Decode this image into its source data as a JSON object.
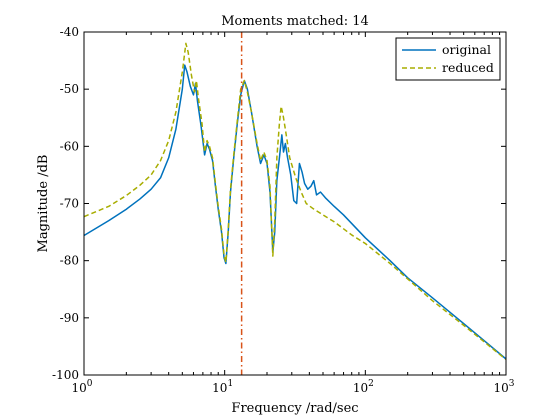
{
  "chart_data": {
    "type": "line",
    "title": "Moments matched: 14",
    "xlabel": "Frequency /rad/sec",
    "ylabel": "Magnitude /dB",
    "xscale": "log",
    "xlim": [
      1,
      1000
    ],
    "ylim": [
      -100,
      -40
    ],
    "xticks": [
      1,
      10,
      100,
      1000
    ],
    "xtick_labels": [
      {
        "base": "10",
        "exp": "0"
      },
      {
        "base": "10",
        "exp": "1"
      },
      {
        "base": "10",
        "exp": "2"
      },
      {
        "base": "10",
        "exp": "3"
      }
    ],
    "yticks": [
      -100,
      -90,
      -80,
      -70,
      -60,
      -50,
      -40
    ],
    "ytick_labels": [
      "-100",
      "-90",
      "-80",
      "-70",
      "-60",
      "-50",
      "-40"
    ],
    "grid": false,
    "legend_position": "top-right",
    "vertical_marker": {
      "x": 13.2,
      "color": "#d95319",
      "style": "dash-dot"
    },
    "series": [
      {
        "name": "original",
        "color": "#0072bd",
        "style": "solid",
        "points": [
          [
            1.0,
            -75.6
          ],
          [
            1.5,
            -73.0
          ],
          [
            2.0,
            -71.0
          ],
          [
            2.5,
            -69.2
          ],
          [
            3.0,
            -67.5
          ],
          [
            3.5,
            -65.5
          ],
          [
            4.0,
            -62.0
          ],
          [
            4.5,
            -57.0
          ],
          [
            5.0,
            -50.0
          ],
          [
            5.2,
            -45.8
          ],
          [
            5.4,
            -47.0
          ],
          [
            5.7,
            -49.5
          ],
          [
            6.0,
            -51.0
          ],
          [
            6.2,
            -49.0
          ],
          [
            6.4,
            -52.0
          ],
          [
            6.8,
            -56.5
          ],
          [
            7.2,
            -61.5
          ],
          [
            7.5,
            -59.5
          ],
          [
            7.8,
            -60.5
          ],
          [
            8.2,
            -62.5
          ],
          [
            8.6,
            -67.0
          ],
          [
            9.0,
            -71.0
          ],
          [
            9.5,
            -75.0
          ],
          [
            9.9,
            -79.5
          ],
          [
            10.2,
            -80.5
          ],
          [
            10.6,
            -75.0
          ],
          [
            11.0,
            -68.0
          ],
          [
            11.6,
            -62.0
          ],
          [
            12.3,
            -56.0
          ],
          [
            13.0,
            -51.0
          ],
          [
            13.8,
            -48.5
          ],
          [
            14.5,
            -50.0
          ],
          [
            15.5,
            -54.0
          ],
          [
            17.0,
            -60.0
          ],
          [
            18.0,
            -63.0
          ],
          [
            19.0,
            -61.5
          ],
          [
            20.0,
            -63.0
          ],
          [
            21.0,
            -68.0
          ],
          [
            22.0,
            -78.5
          ],
          [
            22.7,
            -75.0
          ],
          [
            23.5,
            -66.0
          ],
          [
            24.5,
            -62.0
          ],
          [
            25.5,
            -58.0
          ],
          [
            26.2,
            -61.0
          ],
          [
            27.0,
            -59.5
          ],
          [
            28.0,
            -62.0
          ],
          [
            29.5,
            -65.0
          ],
          [
            31.0,
            -69.5
          ],
          [
            32.5,
            -70.0
          ],
          [
            34.0,
            -63.0
          ],
          [
            35.5,
            -64.5
          ],
          [
            37.0,
            -66.5
          ],
          [
            39.0,
            -67.5
          ],
          [
            41.0,
            -67.0
          ],
          [
            43.0,
            -66.0
          ],
          [
            45.0,
            -68.5
          ],
          [
            48.0,
            -68.0
          ],
          [
            52.0,
            -69.0
          ],
          [
            60.0,
            -70.5
          ],
          [
            70.0,
            -72.0
          ],
          [
            100.0,
            -76.0
          ],
          [
            150.0,
            -80.0
          ],
          [
            200.0,
            -83.0
          ],
          [
            300.0,
            -86.5
          ],
          [
            500.0,
            -91.0
          ],
          [
            700.0,
            -94.0
          ],
          [
            1000.0,
            -97.2
          ]
        ]
      },
      {
        "name": "reduced",
        "color": "#a8ad00",
        "style": "dashed",
        "points": [
          [
            1.0,
            -72.3
          ],
          [
            1.5,
            -70.5
          ],
          [
            2.0,
            -68.6
          ],
          [
            2.5,
            -66.8
          ],
          [
            3.0,
            -65.0
          ],
          [
            3.5,
            -62.5
          ],
          [
            4.0,
            -59.0
          ],
          [
            4.5,
            -54.0
          ],
          [
            5.0,
            -47.0
          ],
          [
            5.3,
            -42.0
          ],
          [
            5.5,
            -43.5
          ],
          [
            5.8,
            -47.5
          ],
          [
            6.1,
            -50.5
          ],
          [
            6.3,
            -48.5
          ],
          [
            6.5,
            -51.5
          ],
          [
            6.9,
            -56.0
          ],
          [
            7.2,
            -61.0
          ],
          [
            7.5,
            -59.0
          ],
          [
            7.8,
            -60.0
          ],
          [
            8.2,
            -62.0
          ],
          [
            8.6,
            -66.5
          ],
          [
            9.0,
            -70.5
          ],
          [
            9.5,
            -74.5
          ],
          [
            9.9,
            -79.0
          ],
          [
            10.2,
            -80.3
          ],
          [
            10.6,
            -74.5
          ],
          [
            11.0,
            -67.5
          ],
          [
            11.6,
            -61.5
          ],
          [
            12.3,
            -55.5
          ],
          [
            13.0,
            -50.0
          ],
          [
            13.8,
            -48.5
          ],
          [
            14.5,
            -50.5
          ],
          [
            15.5,
            -54.0
          ],
          [
            17.0,
            -59.5
          ],
          [
            18.0,
            -62.5
          ],
          [
            19.0,
            -61.0
          ],
          [
            20.0,
            -62.5
          ],
          [
            21.0,
            -67.0
          ],
          [
            22.0,
            -79.2
          ],
          [
            22.7,
            -73.0
          ],
          [
            23.5,
            -62.0
          ],
          [
            24.5,
            -56.0
          ],
          [
            25.2,
            -53.0
          ],
          [
            26.0,
            -54.5
          ],
          [
            27.0,
            -57.0
          ],
          [
            29.0,
            -62.0
          ],
          [
            32.0,
            -65.5
          ],
          [
            35.0,
            -68.0
          ],
          [
            38.0,
            -70.0
          ],
          [
            42.0,
            -70.8
          ],
          [
            50.0,
            -72.0
          ],
          [
            60.0,
            -73.2
          ],
          [
            80.0,
            -75.5
          ],
          [
            100.0,
            -77.0
          ],
          [
            150.0,
            -80.5
          ],
          [
            200.0,
            -83.2
          ],
          [
            300.0,
            -87.0
          ],
          [
            500.0,
            -91.3
          ],
          [
            700.0,
            -94.2
          ],
          [
            1000.0,
            -97.3
          ]
        ]
      }
    ]
  }
}
